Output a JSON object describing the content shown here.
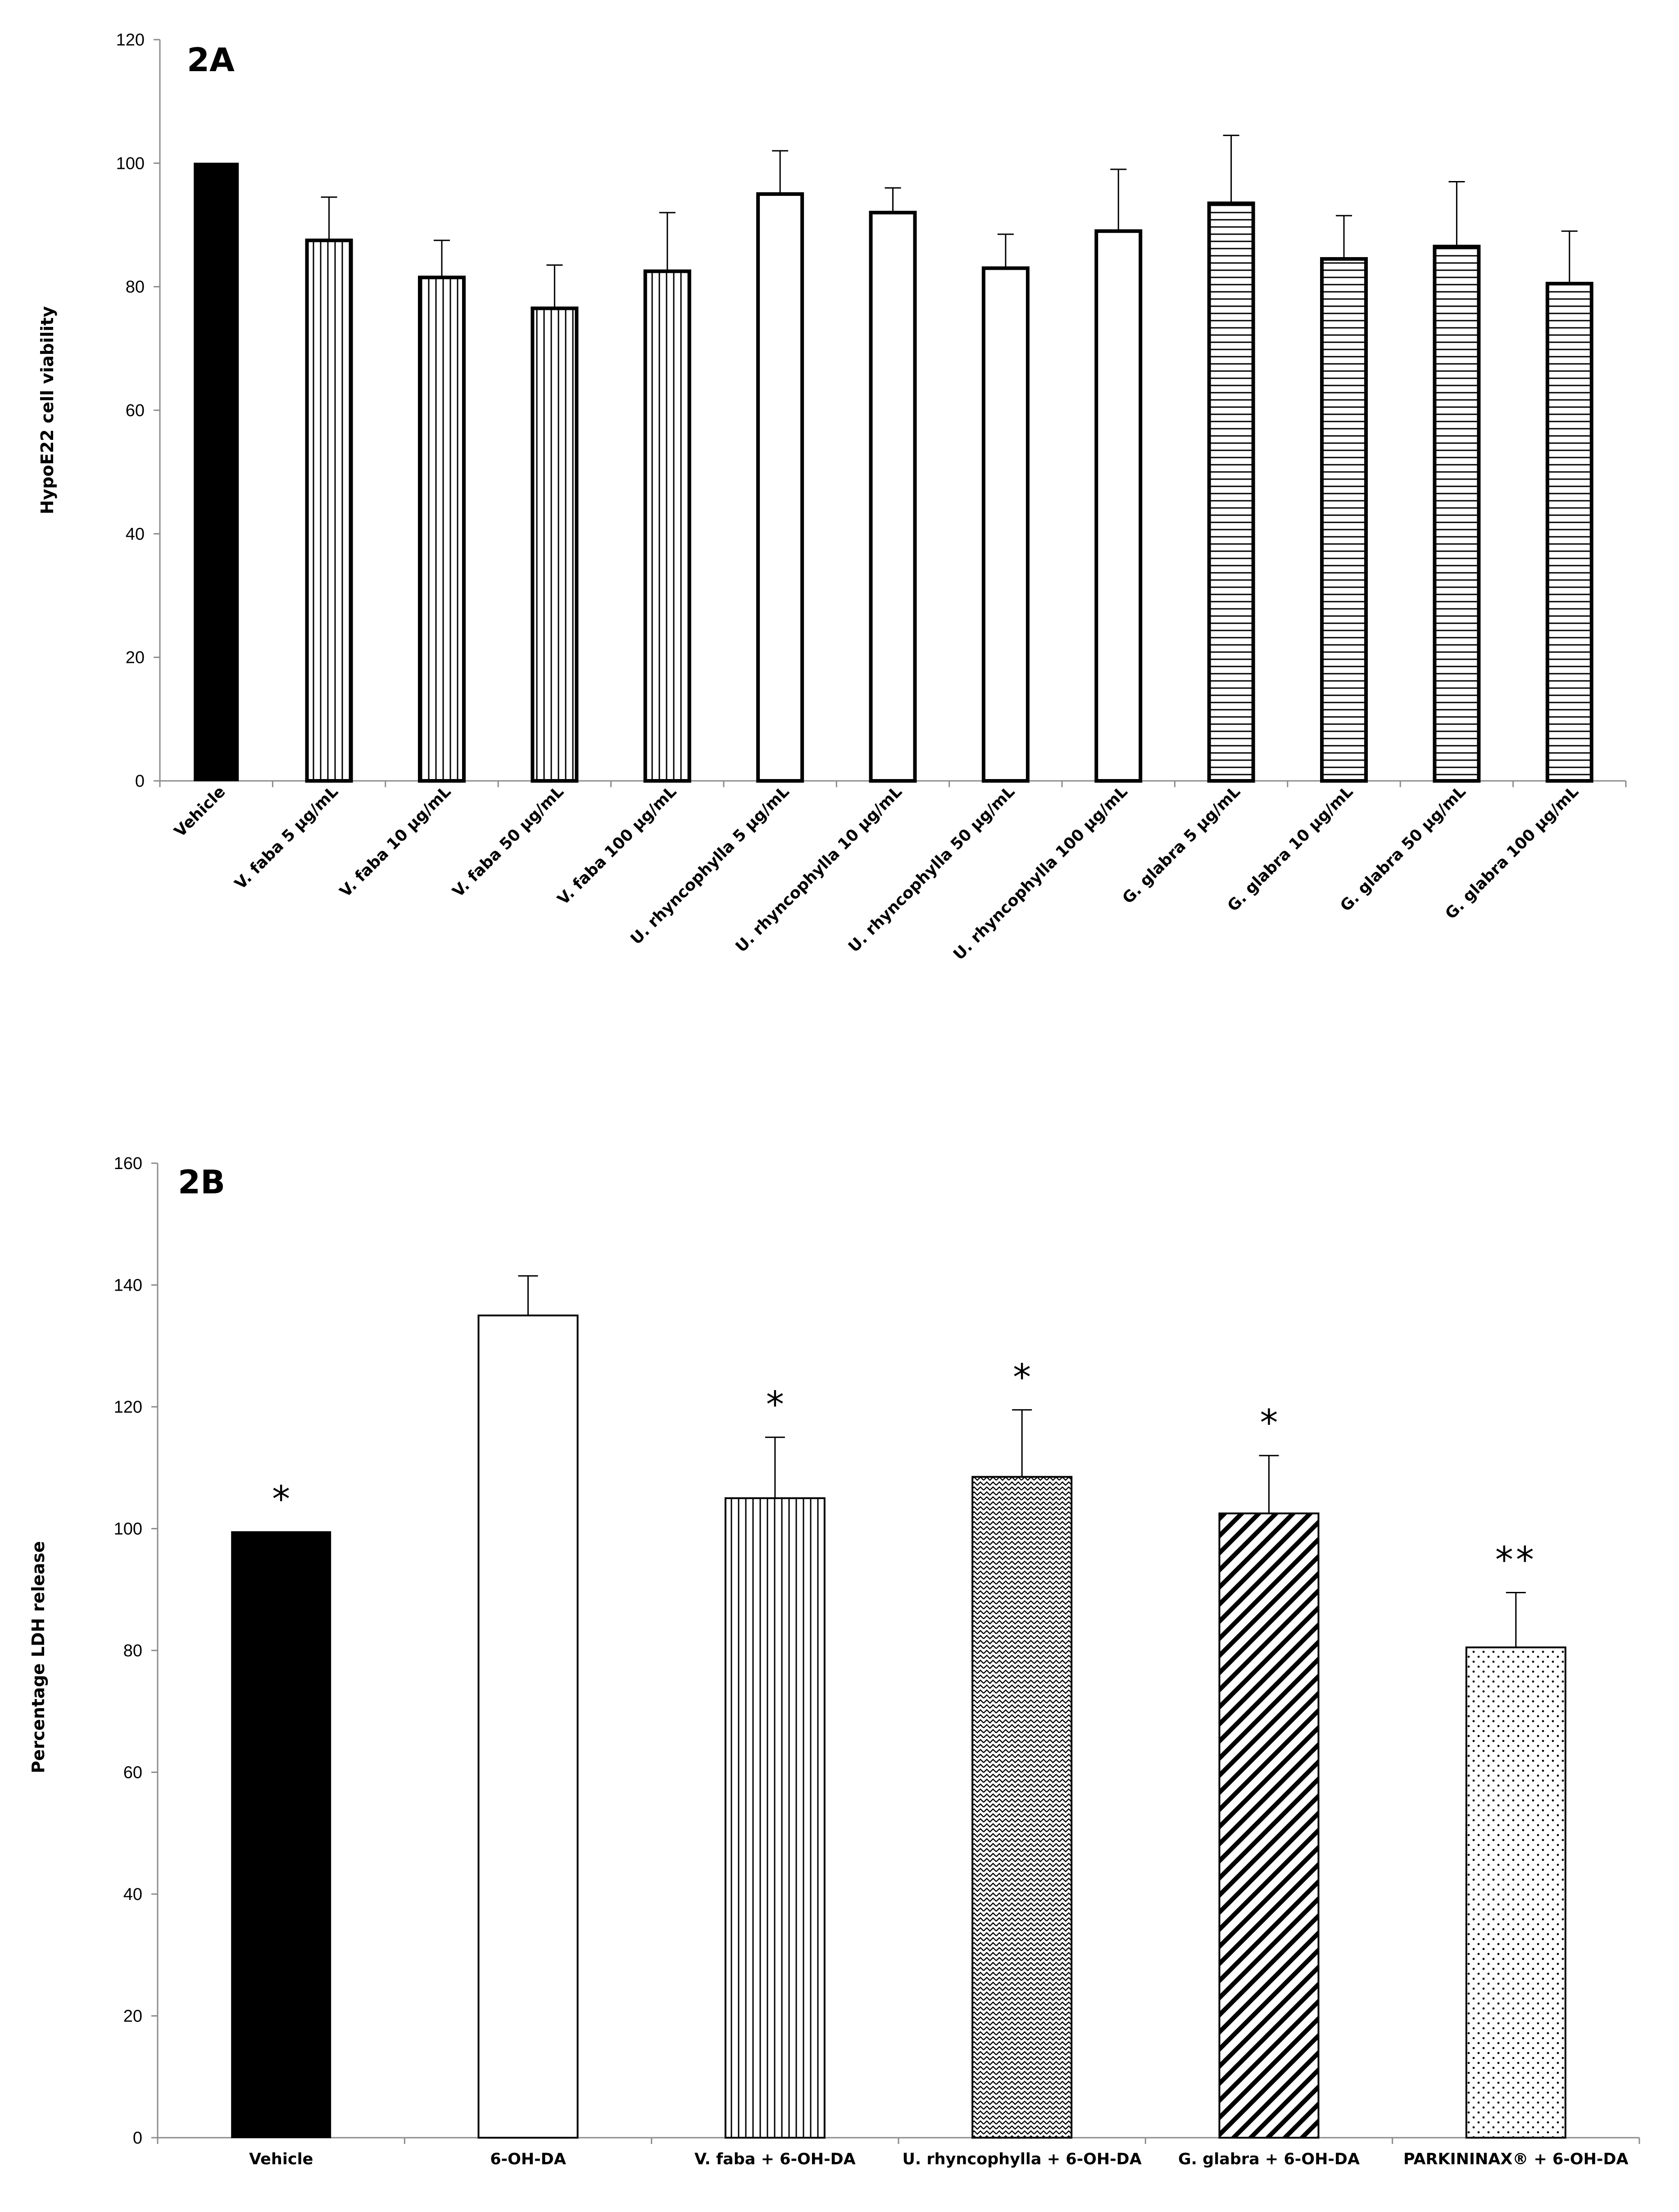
{
  "chart_data": [
    {
      "type": "bar",
      "panel_label": "2A",
      "title": "",
      "xlabel": "",
      "ylabel": "HypoE22  cell viability",
      "ylim": [
        0,
        120
      ],
      "yticks": [
        0,
        20,
        40,
        60,
        80,
        100,
        120
      ],
      "grid": false,
      "categories": [
        "Vehicle",
        "V. faba 5 µg/mL",
        "V. faba 10 µg/mL",
        "V. faba 50 µg/mL",
        "V. faba 100 µg/mL",
        "U. rhyncophylla 5 µg/mL",
        "U. rhyncophylla 10 µg/mL",
        "U. rhyncophylla 50 µg/mL",
        "U. rhyncophylla 100 µg/mL",
        "G. glabra 5 µg/mL",
        "G. glabra 10 µg/mL",
        "G. glabra 50 µg/mL",
        "G. glabra 100 µg/mL"
      ],
      "values": [
        100,
        87.5,
        81.5,
        76.5,
        82.5,
        95,
        92,
        83,
        89,
        93.5,
        84.5,
        86.5,
        80.5
      ],
      "errors": [
        0,
        7,
        6,
        7,
        9.5,
        7,
        4,
        5.5,
        10,
        11,
        7,
        10.5,
        8.5
      ],
      "fills": [
        "solid",
        "vlines",
        "vlines",
        "vlines",
        "vlines",
        "white",
        "white",
        "white",
        "white",
        "hlines",
        "hlines",
        "hlines",
        "hlines"
      ],
      "annotations": []
    },
    {
      "type": "bar",
      "panel_label": "2B",
      "title": "",
      "xlabel": "",
      "ylabel": "Percentage LDH release",
      "ylim": [
        0,
        160
      ],
      "yticks": [
        0,
        20,
        40,
        60,
        80,
        100,
        120,
        140,
        160
      ],
      "grid": false,
      "categories": [
        "Vehicle",
        "6-OH-DA",
        "V. faba + 6-OH-DA",
        "U. rhyncophylla + 6-OH-DA",
        "G. glabra + 6-OH-DA",
        "PARKININAX® + 6-OH-DA"
      ],
      "values": [
        99.5,
        135,
        105,
        108.5,
        102.5,
        80.5
      ],
      "errors": [
        0,
        6.5,
        10,
        11,
        9.5,
        9
      ],
      "fills": [
        "solid",
        "white",
        "vlines",
        "zigzag",
        "diag",
        "dots"
      ],
      "annotations": [
        "*",
        "",
        "*",
        "*",
        "*",
        "**"
      ]
    }
  ]
}
